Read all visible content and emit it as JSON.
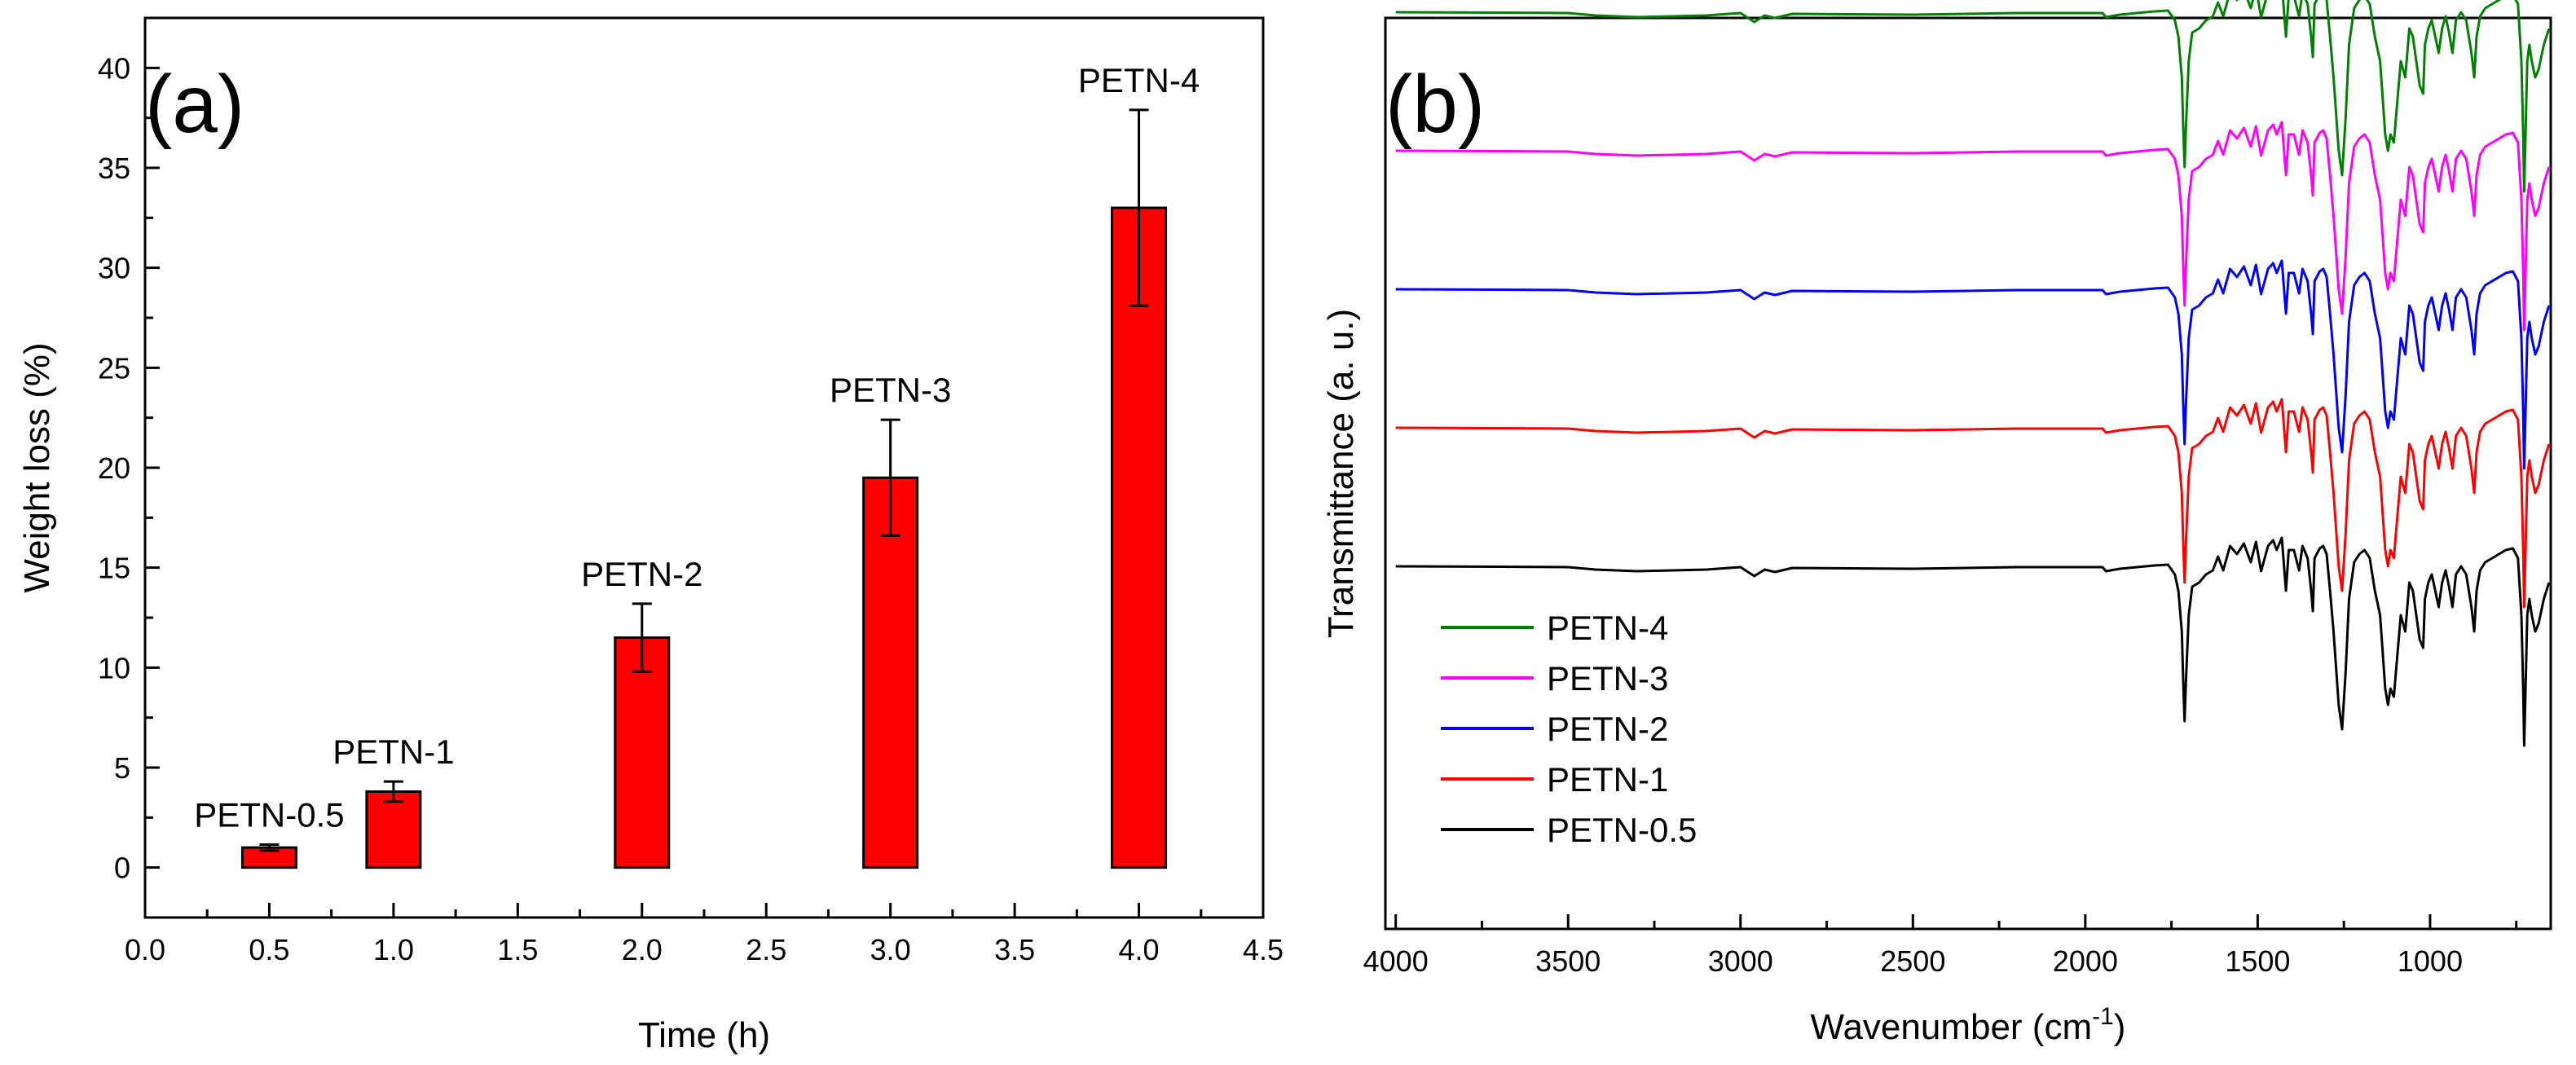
{
  "chart_data": [
    {
      "type": "bar",
      "panel_label": "(a)",
      "xlabel": "Time (h)",
      "ylabel": "Weight loss (%)",
      "xlim": [
        0.0,
        4.5
      ],
      "ylim": [
        -2.5,
        42.5
      ],
      "xticks": [
        "0.0",
        "0.5",
        "1.0",
        "1.5",
        "2.0",
        "2.5",
        "3.0",
        "3.5",
        "4.0",
        "4.5"
      ],
      "yticks": [
        "0",
        "5",
        "10",
        "15",
        "20",
        "25",
        "30",
        "35",
        "40"
      ],
      "bar_color": "#ff0000",
      "bars": [
        {
          "label": "PETN-0.5",
          "x": 0.5,
          "value": 1.0,
          "error": 0.15
        },
        {
          "label": "PETN-1",
          "x": 1.0,
          "value": 3.8,
          "error": 0.5
        },
        {
          "label": "PETN-2",
          "x": 2.0,
          "value": 11.5,
          "error": 1.7
        },
        {
          "label": "PETN-3",
          "x": 3.0,
          "value": 19.5,
          "error": 2.9
        },
        {
          "label": "PETN-4",
          "x": 4.0,
          "value": 33.0,
          "error": 4.9
        }
      ]
    },
    {
      "type": "line",
      "panel_label": "(b)",
      "xlabel_main": "Wavenumber (cm",
      "xlabel_sup": "-1",
      "xlabel_end": ")",
      "ylabel": "Transmittance (a. u.)",
      "xlim": [
        4030,
        650
      ],
      "xticks": [
        "4000",
        "3500",
        "3000",
        "2500",
        "2000",
        "1500",
        "1000"
      ],
      "series": [
        {
          "name": "PETN-4",
          "color": "#008000",
          "offset": 4
        },
        {
          "name": "PETN-3",
          "color": "#ff00ff",
          "offset": 3
        },
        {
          "name": "PETN-2",
          "color": "#0000ff",
          "offset": 2
        },
        {
          "name": "PETN-1",
          "color": "#ff0000",
          "offset": 1
        },
        {
          "name": "PETN-0.5",
          "color": "#000000",
          "offset": 0
        }
      ],
      "baseline_shape": [
        [
          4000,
          0
        ],
        [
          3700,
          -0.5
        ],
        [
          3500,
          -1
        ],
        [
          3420,
          -4
        ],
        [
          3300,
          -6
        ],
        [
          3100,
          -4
        ],
        [
          3000,
          -1
        ],
        [
          2960,
          -12
        ],
        [
          2930,
          -4
        ],
        [
          2900,
          -7
        ],
        [
          2850,
          -2
        ],
        [
          2500,
          -3
        ],
        [
          2200,
          -1
        ],
        [
          1950,
          -1
        ],
        [
          1940,
          -6
        ],
        [
          1900,
          -3
        ],
        [
          1800,
          1
        ],
        [
          1760,
          2
        ],
        [
          1740,
          -10
        ],
        [
          1730,
          -30
        ],
        [
          1720,
          -80
        ],
        [
          1716,
          -140
        ],
        [
          1712,
          -190
        ],
        [
          1708,
          -140
        ],
        [
          1700,
          -60
        ],
        [
          1690,
          -25
        ],
        [
          1670,
          -20
        ],
        [
          1650,
          -10
        ],
        [
          1630,
          -5
        ],
        [
          1615,
          12
        ],
        [
          1600,
          -5
        ],
        [
          1580,
          25
        ],
        [
          1560,
          15
        ],
        [
          1540,
          28
        ],
        [
          1520,
          5
        ],
        [
          1505,
          30
        ],
        [
          1490,
          -6
        ],
        [
          1470,
          25
        ],
        [
          1455,
          32
        ],
        [
          1445,
          20
        ],
        [
          1430,
          35
        ],
        [
          1418,
          -30
        ],
        [
          1410,
          20
        ],
        [
          1395,
          20
        ],
        [
          1380,
          -5
        ],
        [
          1370,
          25
        ],
        [
          1355,
          10
        ],
        [
          1345,
          -30
        ],
        [
          1340,
          -55
        ],
        [
          1335,
          10
        ],
        [
          1320,
          22
        ],
        [
          1310,
          25
        ],
        [
          1300,
          15
        ],
        [
          1290,
          -30
        ],
        [
          1280,
          -80
        ],
        [
          1265,
          -170
        ],
        [
          1255,
          -200
        ],
        [
          1245,
          -130
        ],
        [
          1235,
          -40
        ],
        [
          1220,
          5
        ],
        [
          1205,
          15
        ],
        [
          1190,
          20
        ],
        [
          1175,
          10
        ],
        [
          1160,
          -30
        ],
        [
          1145,
          -60
        ],
        [
          1130,
          -150
        ],
        [
          1122,
          -170
        ],
        [
          1115,
          -150
        ],
        [
          1105,
          -160
        ],
        [
          1095,
          -110
        ],
        [
          1085,
          -60
        ],
        [
          1072,
          -80
        ],
        [
          1060,
          -20
        ],
        [
          1050,
          -30
        ],
        [
          1040,
          -60
        ],
        [
          1030,
          -90
        ],
        [
          1020,
          -100
        ],
        [
          1015,
          -40
        ],
        [
          1005,
          -20
        ],
        [
          995,
          -10
        ],
        [
          985,
          -30
        ],
        [
          975,
          -50
        ],
        [
          965,
          -20
        ],
        [
          955,
          -5
        ],
        [
          945,
          -25
        ],
        [
          935,
          -50
        ],
        [
          925,
          -10
        ],
        [
          910,
          0
        ],
        [
          895,
          -10
        ],
        [
          880,
          -50
        ],
        [
          872,
          -80
        ],
        [
          865,
          -30
        ],
        [
          855,
          -5
        ],
        [
          840,
          5
        ],
        [
          820,
          10
        ],
        [
          800,
          15
        ],
        [
          780,
          20
        ],
        [
          760,
          22
        ],
        [
          745,
          10
        ],
        [
          735,
          -60
        ],
        [
          730,
          -150
        ],
        [
          727,
          -220
        ],
        [
          723,
          -150
        ],
        [
          718,
          -60
        ],
        [
          712,
          -40
        ],
        [
          705,
          -60
        ],
        [
          695,
          -80
        ],
        [
          685,
          -70
        ],
        [
          670,
          -40
        ],
        [
          655,
          -20
        ]
      ]
    }
  ]
}
